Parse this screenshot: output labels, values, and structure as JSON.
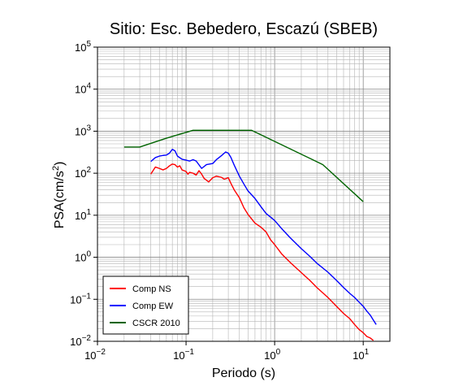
{
  "chart_data": {
    "type": "line",
    "title": "Sitio: Esc. Bebedero, Escazú (SBEB)",
    "xlabel": "Periodo (s)",
    "ylabel": {
      "base": "PSA(cm/s",
      "sup": "2",
      "tail": ")"
    },
    "xscale": "log",
    "yscale": "log",
    "xlim": [
      0.01,
      20
    ],
    "ylim": [
      0.01,
      100000
    ],
    "x_ticks": [
      {
        "base": "10",
        "exp": "−2",
        "value": 0.01
      },
      {
        "base": "10",
        "exp": "−1",
        "value": 0.1
      },
      {
        "base": "10",
        "exp": "0",
        "value": 1
      },
      {
        "base": "10",
        "exp": "1",
        "value": 10
      }
    ],
    "y_ticks": [
      {
        "base": "10",
        "exp": "−2",
        "value": 0.01
      },
      {
        "base": "10",
        "exp": "−1",
        "value": 0.1
      },
      {
        "base": "10",
        "exp": "0",
        "value": 1
      },
      {
        "base": "10",
        "exp": "1",
        "value": 10
      },
      {
        "base": "10",
        "exp": "2",
        "value": 100
      },
      {
        "base": "10",
        "exp": "3",
        "value": 1000
      },
      {
        "base": "10",
        "exp": "4",
        "value": 10000
      },
      {
        "base": "10",
        "exp": "5",
        "value": 100000
      }
    ],
    "grid": true,
    "legend": "bottom-left",
    "series": [
      {
        "name": "Comp NS",
        "color": "#ff0000",
        "points": [
          [
            0.04,
            95
          ],
          [
            0.045,
            140
          ],
          [
            0.05,
            130
          ],
          [
            0.055,
            120
          ],
          [
            0.06,
            130
          ],
          [
            0.065,
            150
          ],
          [
            0.07,
            165
          ],
          [
            0.075,
            160
          ],
          [
            0.08,
            140
          ],
          [
            0.085,
            150
          ],
          [
            0.09,
            120
          ],
          [
            0.1,
            110
          ],
          [
            0.105,
            95
          ],
          [
            0.11,
            105
          ],
          [
            0.12,
            100
          ],
          [
            0.13,
            90
          ],
          [
            0.14,
            115
          ],
          [
            0.15,
            95
          ],
          [
            0.16,
            75
          ],
          [
            0.18,
            62
          ],
          [
            0.2,
            78
          ],
          [
            0.22,
            85
          ],
          [
            0.25,
            80
          ],
          [
            0.27,
            72
          ],
          [
            0.3,
            78
          ],
          [
            0.32,
            58
          ],
          [
            0.35,
            40
          ],
          [
            0.4,
            26
          ],
          [
            0.45,
            15
          ],
          [
            0.5,
            10.5
          ],
          [
            0.6,
            6.5
          ],
          [
            0.7,
            5.2
          ],
          [
            0.8,
            4.0
          ],
          [
            0.9,
            2.6
          ],
          [
            1.0,
            2.0
          ],
          [
            1.2,
            1.2
          ],
          [
            1.5,
            0.75
          ],
          [
            2.0,
            0.43
          ],
          [
            2.5,
            0.28
          ],
          [
            3.0,
            0.19
          ],
          [
            4.0,
            0.11
          ],
          [
            5.0,
            0.068
          ],
          [
            6.0,
            0.046
          ],
          [
            7.0,
            0.035
          ],
          [
            8.0,
            0.025
          ],
          [
            9.0,
            0.019
          ],
          [
            10.0,
            0.016
          ],
          [
            11.0,
            0.013
          ],
          [
            12.0,
            0.012
          ],
          [
            13.0,
            0.0105
          ]
        ]
      },
      {
        "name": "Comp EW",
        "color": "#0000ff",
        "points": [
          [
            0.04,
            190
          ],
          [
            0.045,
            235
          ],
          [
            0.05,
            255
          ],
          [
            0.055,
            265
          ],
          [
            0.06,
            270
          ],
          [
            0.065,
            300
          ],
          [
            0.07,
            370
          ],
          [
            0.075,
            340
          ],
          [
            0.08,
            255
          ],
          [
            0.09,
            215
          ],
          [
            0.1,
            205
          ],
          [
            0.11,
            195
          ],
          [
            0.12,
            210
          ],
          [
            0.13,
            195
          ],
          [
            0.15,
            130
          ],
          [
            0.17,
            160
          ],
          [
            0.2,
            170
          ],
          [
            0.22,
            210
          ],
          [
            0.25,
            260
          ],
          [
            0.28,
            320
          ],
          [
            0.3,
            300
          ],
          [
            0.32,
            240
          ],
          [
            0.35,
            155
          ],
          [
            0.4,
            85
          ],
          [
            0.45,
            55
          ],
          [
            0.5,
            38
          ],
          [
            0.6,
            25
          ],
          [
            0.7,
            16
          ],
          [
            0.8,
            11
          ],
          [
            0.9,
            9
          ],
          [
            1.0,
            7.5
          ],
          [
            1.2,
            4.8
          ],
          [
            1.5,
            2.9
          ],
          [
            2.0,
            1.6
          ],
          [
            2.5,
            1.05
          ],
          [
            3.0,
            0.72
          ],
          [
            4.0,
            0.44
          ],
          [
            5.0,
            0.28
          ],
          [
            6.0,
            0.19
          ],
          [
            7.0,
            0.14
          ],
          [
            8.0,
            0.11
          ],
          [
            9.0,
            0.085
          ],
          [
            10.0,
            0.068
          ],
          [
            11.0,
            0.052
          ],
          [
            12.0,
            0.042
          ],
          [
            13.0,
            0.032
          ],
          [
            14.0,
            0.025
          ]
        ]
      },
      {
        "name": "CSCR 2010",
        "color": "#006400",
        "points": [
          [
            0.02,
            420
          ],
          [
            0.03,
            420
          ],
          [
            0.06,
            680
          ],
          [
            0.12,
            1050
          ],
          [
            0.55,
            1050
          ],
          [
            3.5,
            160
          ],
          [
            10.0,
            21
          ]
        ]
      }
    ]
  }
}
